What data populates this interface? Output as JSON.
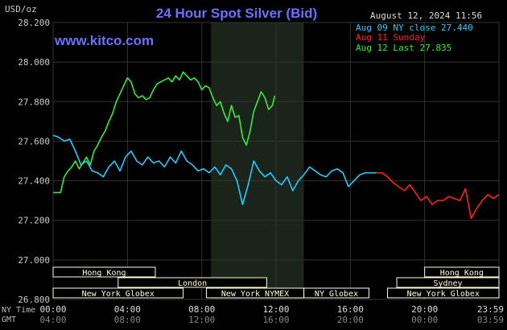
{
  "header": {
    "title": "24 Hour Spot Silver (Bid)",
    "unit": "USD/oz",
    "date": "August 12, 2024 11:56",
    "site": "www.kitco.com"
  },
  "legend": [
    {
      "text": "Aug 09 NY close 27.440",
      "color": "#22ccff"
    },
    {
      "text": "Aug 11 Sunday",
      "color": "#ff2020"
    },
    {
      "text": "Aug 12 Last 27.835",
      "color": "#33ee33"
    }
  ],
  "timezones": {
    "ny_label": "NY Time",
    "gmt_label": "GMT"
  },
  "sessions": [
    {
      "label": "Hong Kong",
      "row": 0,
      "start": 0,
      "end": 5.5
    },
    {
      "label": "London",
      "row": 1,
      "start": 3.5,
      "end": 11.5
    },
    {
      "label": "New York Globex",
      "row": 2,
      "start": 0,
      "end": 7
    },
    {
      "label": "New York NYMEX",
      "row": 2,
      "start": 8.25,
      "end": 13.5
    },
    {
      "label": "NY Globex",
      "row": 2,
      "start": 13.5,
      "end": 17
    },
    {
      "label": "Hong Kong",
      "row": 0,
      "start": 20,
      "end": 24
    },
    {
      "label": "Sydney",
      "row": 1,
      "start": 18.5,
      "end": 24
    },
    {
      "label": "New York Globex",
      "row": 2,
      "start": 18,
      "end": 24
    }
  ],
  "colors": {
    "background": "#000000",
    "grid": "#333333",
    "highlight": "#1a241a",
    "title": "#6f6fff",
    "axis_text": "#cccccc",
    "aug09": "#22ccff",
    "aug11": "#ff2020",
    "aug12": "#33ee33",
    "session_fill": "#ffffdd"
  },
  "chart_data": {
    "type": "line",
    "title": "24 Hour Spot Silver (Bid)",
    "ylabel": "USD/oz",
    "ylim": [
      26.8,
      28.2
    ],
    "y_ticks": [
      "28.200",
      "28.000",
      "27.800",
      "27.600",
      "27.400",
      "27.200",
      "27.000",
      "26.800"
    ],
    "xlim": [
      0,
      24
    ],
    "x_ticks_ny": [
      "00:00",
      "04:00",
      "08:00",
      "12:00",
      "16:00",
      "20:00",
      "23:59"
    ],
    "x_ticks_gmt": [
      "04:00",
      "08:00",
      "12:00",
      "16:00",
      "20:00",
      "00:00",
      "03:59"
    ],
    "highlight_range": [
      8.5,
      13.5
    ],
    "series": [
      {
        "name": "Aug 09 NY close 27.440",
        "x": [
          0,
          0.3,
          0.6,
          0.9,
          1.2,
          1.5,
          1.8,
          2.1,
          2.4,
          2.7,
          3.0,
          3.3,
          3.6,
          3.9,
          4.2,
          4.5,
          4.8,
          5.1,
          5.4,
          5.7,
          6.0,
          6.3,
          6.6,
          6.9,
          7.2,
          7.5,
          7.8,
          8.1,
          8.4,
          8.7,
          9.0,
          9.3,
          9.6,
          9.9,
          10.2,
          10.5,
          10.8,
          11.1,
          11.4,
          11.7,
          12.0,
          12.3,
          12.6,
          12.9,
          13.2,
          13.5,
          13.8,
          14.1,
          14.4,
          14.7,
          15.0,
          15.3,
          15.6,
          15.9,
          16.2,
          16.5,
          16.8,
          17.1,
          17.4
        ],
        "values": [
          27.63,
          27.62,
          27.6,
          27.61,
          27.55,
          27.48,
          27.5,
          27.45,
          27.44,
          27.42,
          27.47,
          27.5,
          27.45,
          27.52,
          27.55,
          27.5,
          27.48,
          27.52,
          27.49,
          27.5,
          27.47,
          27.52,
          27.49,
          27.55,
          27.5,
          27.48,
          27.45,
          27.46,
          27.44,
          27.47,
          27.43,
          27.48,
          27.46,
          27.4,
          27.28,
          27.38,
          27.5,
          27.45,
          27.42,
          27.44,
          27.4,
          27.38,
          27.42,
          27.35,
          27.4,
          27.43,
          27.47,
          27.45,
          27.43,
          27.42,
          27.45,
          27.46,
          27.44,
          27.37,
          27.4,
          27.43,
          27.44,
          27.44,
          27.44
        ]
      },
      {
        "name": "Aug 11 Sunday",
        "x": [
          17.4,
          17.7,
          18.0,
          18.3,
          18.6,
          18.9,
          19.2,
          19.5,
          19.8,
          20.1,
          20.4,
          20.7,
          21.0,
          21.3,
          21.6,
          21.9,
          22.2,
          22.5,
          22.8,
          23.1,
          23.4,
          23.7,
          23.99
        ],
        "values": [
          27.44,
          27.44,
          27.42,
          27.39,
          27.37,
          27.35,
          27.38,
          27.34,
          27.3,
          27.32,
          27.28,
          27.3,
          27.3,
          27.32,
          27.31,
          27.3,
          27.36,
          27.21,
          27.26,
          27.3,
          27.33,
          27.31,
          27.33
        ]
      },
      {
        "name": "Aug 12 Last 27.835",
        "x": [
          0,
          0.2,
          0.4,
          0.6,
          0.8,
          1.0,
          1.2,
          1.4,
          1.6,
          1.8,
          2.0,
          2.2,
          2.4,
          2.6,
          2.8,
          3.0,
          3.2,
          3.4,
          3.6,
          3.8,
          4.0,
          4.2,
          4.4,
          4.6,
          4.8,
          5.0,
          5.2,
          5.4,
          5.6,
          5.8,
          6.0,
          6.2,
          6.4,
          6.6,
          6.8,
          7.0,
          7.2,
          7.4,
          7.6,
          7.8,
          8.0,
          8.2,
          8.4,
          8.6,
          8.8,
          9.0,
          9.2,
          9.4,
          9.6,
          9.8,
          10.0,
          10.2,
          10.4,
          10.6,
          10.8,
          11.0,
          11.2,
          11.4,
          11.6,
          11.8,
          11.93
        ],
        "values": [
          27.34,
          27.34,
          27.34,
          27.42,
          27.45,
          27.47,
          27.5,
          27.46,
          27.49,
          27.52,
          27.48,
          27.55,
          27.58,
          27.62,
          27.65,
          27.7,
          27.74,
          27.8,
          27.84,
          27.88,
          27.92,
          27.9,
          27.84,
          27.82,
          27.83,
          27.81,
          27.82,
          27.86,
          27.89,
          27.9,
          27.91,
          27.92,
          27.9,
          27.93,
          27.91,
          27.95,
          27.93,
          27.91,
          27.92,
          27.9,
          27.86,
          27.88,
          27.87,
          27.82,
          27.78,
          27.8,
          27.74,
          27.7,
          27.78,
          27.72,
          27.73,
          27.62,
          27.58,
          27.65,
          27.75,
          27.8,
          27.85,
          27.82,
          27.76,
          27.78,
          27.83
        ]
      }
    ]
  }
}
